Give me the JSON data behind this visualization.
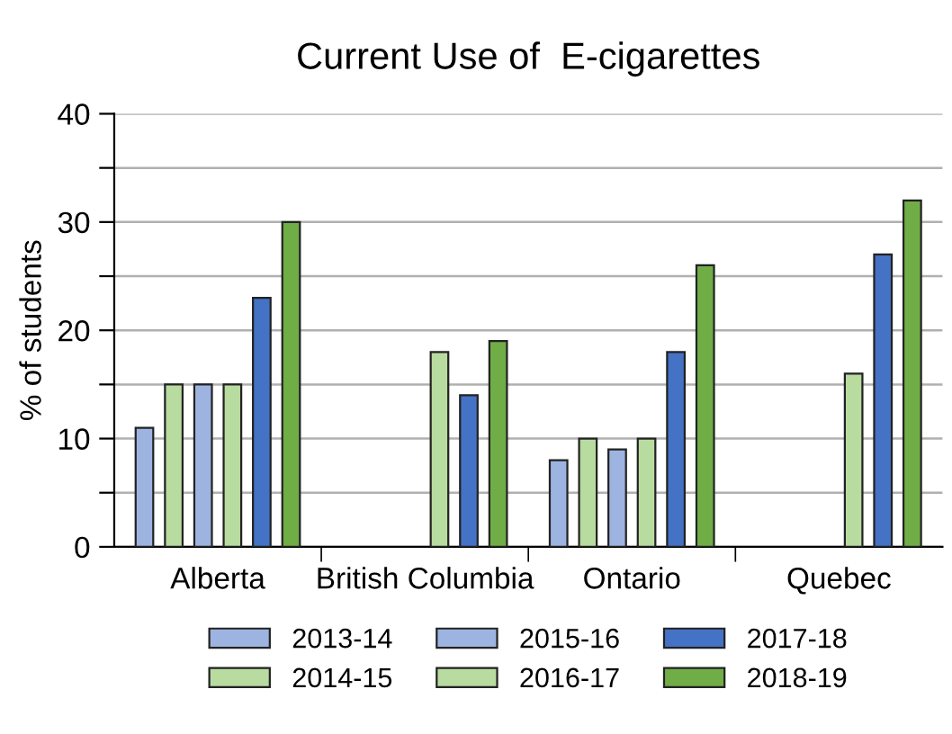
{
  "chart_data": {
    "type": "bar",
    "title": "Current Use of  E-cigarettes",
    "ylabel": "% of students",
    "categories": [
      "Alberta",
      "British Columbia",
      "Ontario",
      "Quebec"
    ],
    "series": [
      {
        "name": "2013-14",
        "color": "#9db4e0",
        "values": [
          11,
          null,
          8,
          null
        ]
      },
      {
        "name": "2014-15",
        "color": "#b8dba0",
        "values": [
          15,
          null,
          10,
          null
        ]
      },
      {
        "name": "2015-16",
        "color": "#9db4e0",
        "values": [
          15,
          null,
          9,
          null
        ]
      },
      {
        "name": "2016-17",
        "color": "#b8dba0",
        "values": [
          15,
          18,
          10,
          16
        ]
      },
      {
        "name": "2017-18",
        "color": "#4472c4",
        "values": [
          23,
          14,
          18,
          27
        ]
      },
      {
        "name": "2018-19",
        "color": "#70ad47",
        "values": [
          30,
          19,
          26,
          32
        ]
      }
    ],
    "ylim": [
      0,
      40
    ],
    "yticks": [
      0,
      {
        "value": 5,
        "label": null
      },
      10,
      {
        "value": 15,
        "label": null
      },
      20,
      {
        "value": 25,
        "label": null
      },
      30,
      {
        "value": 35,
        "label": null
      },
      40
    ],
    "grid": "y",
    "legend": "bottom"
  }
}
